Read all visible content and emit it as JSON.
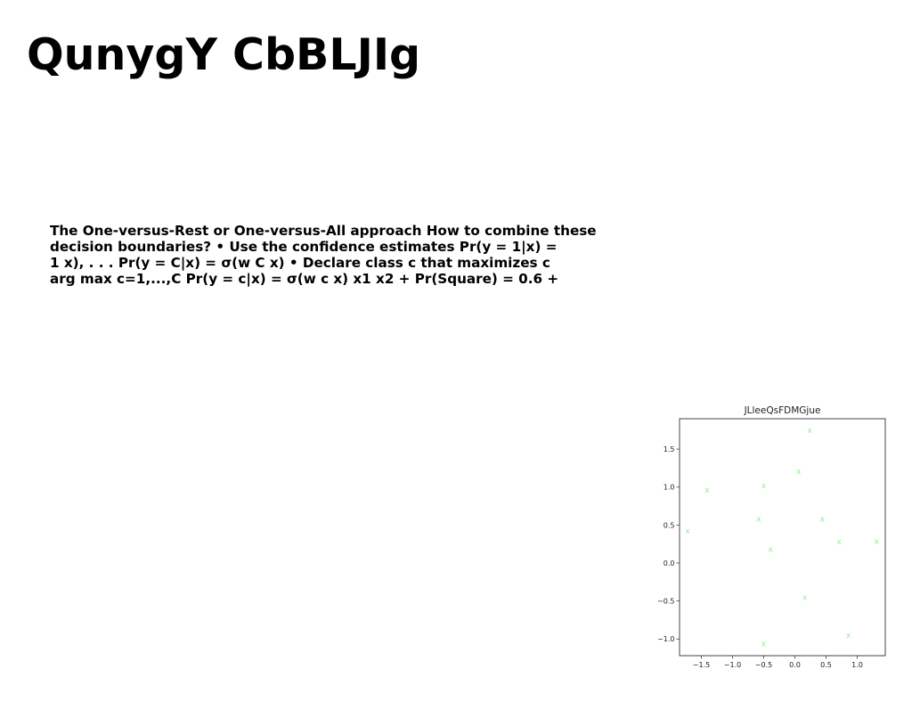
{
  "slide": {
    "title": "QunygY CbBLJIg",
    "body_lines": [
      "The One-versus-Rest or One-versus-All approach How to combine these",
      "decision boundaries? • Use the confidence estimates Pr(y = 1|x) =",
      "1 x), . . . Pr(y = C|x) = σ(w C x) • Declare class c that maximizes c",
      "arg max c=1,...,C Pr(y = c|x) = σ(w c x) x1 x2 + Pr(Square) = 0.6 +"
    ]
  },
  "chart_data": {
    "type": "scatter",
    "title": "JLleeQsFDMGjue",
    "marker": "x",
    "marker_color": "#90ee90",
    "xlim": [
      -1.85,
      1.45
    ],
    "ylim": [
      -1.22,
      1.9
    ],
    "xticks": [
      -1.5,
      -1.0,
      -0.5,
      0.0,
      0.5,
      1.0
    ],
    "xtick_labels": [
      "−1.5",
      "−1.0",
      "−0.5",
      "0.0",
      "0.5",
      "1.0"
    ],
    "yticks": [
      1.5,
      1.0,
      0.5,
      0.0,
      -0.5,
      -1.0
    ],
    "ytick_labels": [
      "1.5",
      "1.0",
      "0.5",
      "0.0",
      "−0.5",
      "−1.0"
    ],
    "grid": false,
    "series": [
      {
        "points": [
          {
            "x": 0.24,
            "y": 1.75
          },
          {
            "x": 0.06,
            "y": 1.21
          },
          {
            "x": -1.41,
            "y": 0.96
          },
          {
            "x": -0.5,
            "y": 1.02
          },
          {
            "x": -0.58,
            "y": 0.58
          },
          {
            "x": 0.44,
            "y": 0.58
          },
          {
            "x": -1.72,
            "y": 0.42
          },
          {
            "x": 0.71,
            "y": 0.28
          },
          {
            "x": 1.31,
            "y": 0.29
          },
          {
            "x": -0.39,
            "y": 0.18
          },
          {
            "x": 0.16,
            "y": -0.45
          },
          {
            "x": 0.86,
            "y": -0.95
          },
          {
            "x": -0.5,
            "y": -1.06
          }
        ]
      }
    ]
  }
}
